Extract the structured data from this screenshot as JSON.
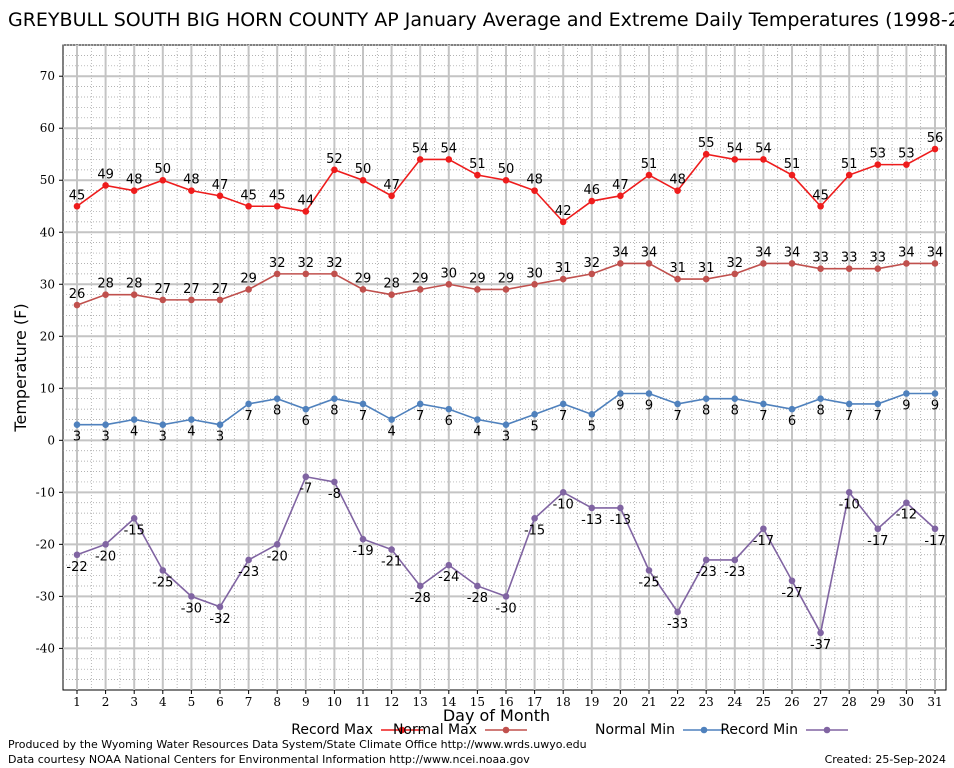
{
  "chart_data": {
    "type": "line",
    "title": "GREYBULL SOUTH BIG HORN COUNTY AP January Average and Extreme Daily Temperatures (1998-2",
    "xlabel": "Day of Month",
    "ylabel": "Temperature (F)",
    "ylim": [
      -48,
      76
    ],
    "yticks": [
      -40,
      -30,
      -20,
      -10,
      0,
      10,
      20,
      30,
      40,
      50,
      60,
      70
    ],
    "x": [
      1,
      2,
      3,
      4,
      5,
      6,
      7,
      8,
      9,
      10,
      11,
      12,
      13,
      14,
      15,
      16,
      17,
      18,
      19,
      20,
      21,
      22,
      23,
      24,
      25,
      26,
      27,
      28,
      29,
      30,
      31
    ],
    "grid": true,
    "legend_position": "bottom",
    "series": [
      {
        "name": "Record Max",
        "color": "#ee1c1c",
        "label_pos": "above",
        "values": [
          45,
          49,
          48,
          50,
          48,
          47,
          45,
          45,
          44,
          52,
          50,
          47,
          54,
          54,
          51,
          50,
          48,
          42,
          46,
          47,
          51,
          48,
          55,
          54,
          54,
          51,
          45,
          51,
          53,
          53,
          56
        ]
      },
      {
        "name": "Normal Max",
        "color": "#c0504d",
        "label_pos": "above",
        "values": [
          26,
          28,
          28,
          27,
          27,
          27,
          29,
          32,
          32,
          32,
          29,
          28,
          29,
          30,
          29,
          29,
          30,
          31,
          32,
          34,
          34,
          31,
          31,
          32,
          34,
          34,
          33,
          33,
          33,
          34,
          34
        ]
      },
      {
        "name": "Normal Min",
        "color": "#4f81bd",
        "label_pos": "below",
        "values": [
          3,
          3,
          4,
          3,
          4,
          3,
          7,
          8,
          6,
          8,
          7,
          4,
          7,
          6,
          4,
          3,
          5,
          7,
          5,
          9,
          9,
          7,
          8,
          8,
          7,
          6,
          8,
          7,
          7,
          9,
          9
        ]
      },
      {
        "name": "Record Min",
        "color": "#8064a2",
        "label_pos": "below",
        "values": [
          -22,
          -20,
          -15,
          -25,
          -30,
          -32,
          -23,
          -20,
          -7,
          -8,
          -19,
          -21,
          -28,
          -24,
          -28,
          -30,
          -15,
          -10,
          -13,
          -13,
          -25,
          -33,
          -23,
          -23,
          -17,
          -27,
          -37,
          -10,
          -17,
          -12,
          -17
        ]
      }
    ]
  },
  "footer": {
    "produced_by": "Produced by the Wyoming Water Resources Data System/State Climate Office http://www.wrds.uwyo.edu",
    "courtesy": "Data courtesy NOAA National Centers for Environmental Information http://www.ncei.noaa.gov",
    "created": "Created:  25-Sep-2024"
  }
}
